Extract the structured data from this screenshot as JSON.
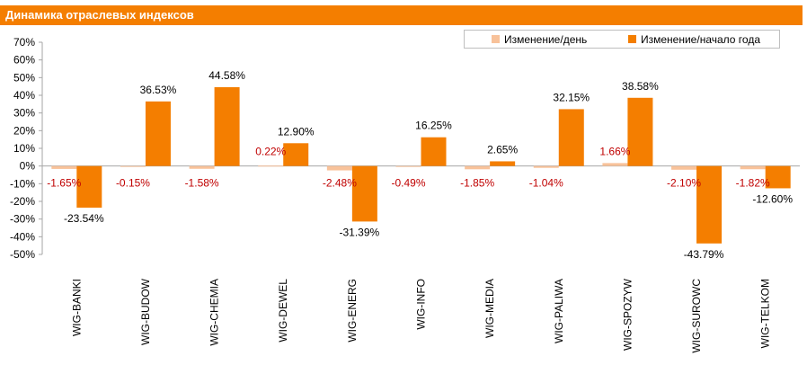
{
  "title": "Динамика отраслевых индексов",
  "colors": {
    "daily": "#f8c29a",
    "ytd": "#f47e00",
    "daily_label": "#c00000",
    "ytd_label": "#000000",
    "title_bg": "#f47e00"
  },
  "legend": {
    "daily_label": "Изменение/день",
    "ytd_label": "Изменение/начало года"
  },
  "chart_data": {
    "type": "bar",
    "title": "Динамика отраслевых индексов",
    "categories": [
      "WIG-BANKI",
      "WIG-BUDOW",
      "WIG-CHEMIA",
      "WIG-DEWEL",
      "WIG-ENERG",
      "WIG-INFO",
      "WIG-MEDIA",
      "WIG-PALIWA",
      "WIG-SPOZYW",
      "WIG-SUROWC",
      "WIG-TELKOM"
    ],
    "series": [
      {
        "name": "Изменение/день",
        "values": [
          -1.65,
          -0.15,
          -1.58,
          0.22,
          -2.48,
          -0.49,
          -1.85,
          -1.04,
          1.66,
          -2.1,
          -1.82
        ],
        "labels": [
          "-1.65%",
          "-0.15%",
          "-1.58%",
          "0.22%",
          "-2.48%",
          "-0.49%",
          "-1.85%",
          "-1.04%",
          "1.66%",
          "-2.10%",
          "-1.82%"
        ]
      },
      {
        "name": "Изменение/начало года",
        "values": [
          -23.54,
          36.53,
          44.58,
          12.9,
          -31.39,
          16.25,
          2.65,
          32.15,
          38.58,
          -43.79,
          -12.6
        ],
        "labels": [
          "-23.54%",
          "36.53%",
          "44.58%",
          "12.90%",
          "-31.39%",
          "16.25%",
          "2.65%",
          "32.15%",
          "38.58%",
          "-43.79%",
          "-12.60%"
        ]
      }
    ],
    "yticks": [
      "70%",
      "60%",
      "50%",
      "40%",
      "30%",
      "20%",
      "10%",
      "0%",
      "-10%",
      "-20%",
      "-30%",
      "-40%",
      "-50%"
    ],
    "ylim": [
      -50,
      70
    ],
    "grid": false,
    "legend_position": "top-right"
  }
}
